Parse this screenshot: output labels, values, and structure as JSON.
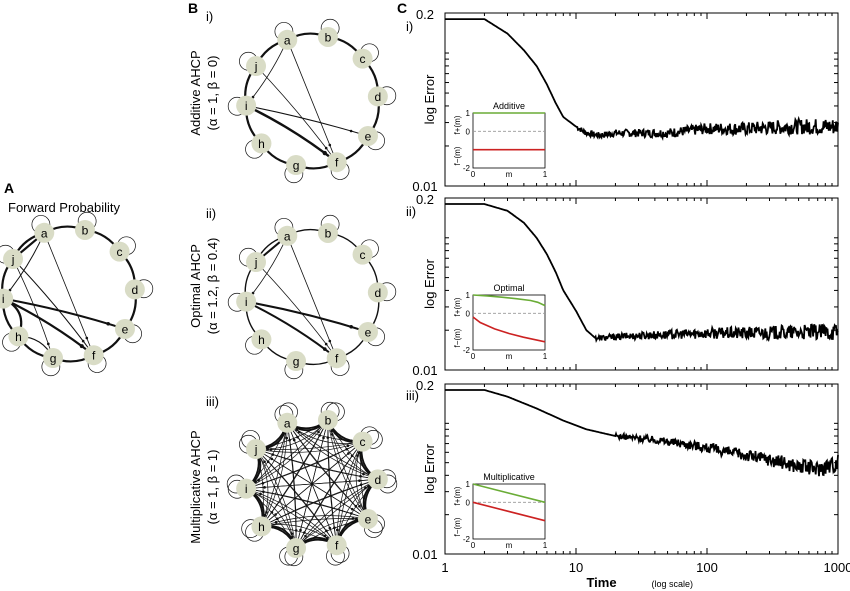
{
  "panels": {
    "a": "A",
    "b": "B",
    "c": "C"
  },
  "panel_a": {
    "title": "Forward Probability"
  },
  "nodes": [
    "a",
    "b",
    "c",
    "d",
    "e",
    "f",
    "g",
    "h",
    "i",
    "j"
  ],
  "panel_b": [
    {
      "roman": "i)",
      "line1": "Additive AHCP",
      "line2": "(α = 1, β = 0)"
    },
    {
      "roman": "ii)",
      "line1": "Optimal AHCP",
      "line2": "(α = 1.2, β = 0.4)"
    },
    {
      "roman": "iii)",
      "line1": "Multiplicative AHCP",
      "line2": "(α = 1, β = 1)"
    }
  ],
  "chart_data": [
    {
      "type": "line",
      "id": "i",
      "roman": "i)",
      "title": "",
      "xlabel": "Time",
      "xlabel_note": "(log scale)",
      "ylabel": "log Error",
      "xscale": "log",
      "yscale": "log",
      "xlim": [
        1,
        1000
      ],
      "ylim": [
        0.01,
        0.2
      ],
      "y_tick_labels": [
        "0.2",
        "0.01"
      ],
      "x": [
        1,
        2,
        3,
        4,
        5,
        6,
        7,
        8,
        10,
        12,
        15,
        20,
        30,
        50,
        100,
        200,
        500,
        1000
      ],
      "y": [
        0.18,
        0.18,
        0.14,
        0.105,
        0.08,
        0.058,
        0.042,
        0.033,
        0.028,
        0.025,
        0.024,
        0.025,
        0.025,
        0.025,
        0.027,
        0.027,
        0.028,
        0.028
      ],
      "noise_from_x": 10,
      "inset": {
        "title": "Additive",
        "xlabel": "m",
        "ylabel_top": "f+(m)",
        "ylabel_bottom": "f−(m)",
        "xlim": [
          0,
          1
        ],
        "ylim": [
          -2,
          1
        ],
        "x_tick_labels": [
          "0",
          "1"
        ],
        "y_tick_labels": [
          "1",
          "0",
          "-2"
        ],
        "series": [
          {
            "name": "f+(m)",
            "color": "#6aac36",
            "x": [
              0,
              1
            ],
            "y": [
              1,
              1
            ]
          },
          {
            "name": "f−(m)",
            "color": "#cc2222",
            "x": [
              0,
              1
            ],
            "y": [
              -1,
              -1
            ]
          }
        ]
      }
    },
    {
      "type": "line",
      "id": "ii",
      "roman": "ii)",
      "title": "",
      "xlabel": "Time",
      "xlabel_note": "(log scale)",
      "ylabel": "log Error",
      "xscale": "log",
      "yscale": "log",
      "xlim": [
        1,
        1000
      ],
      "ylim": [
        0.01,
        0.2
      ],
      "y_tick_labels": [
        "0.2",
        "0.01"
      ],
      "x": [
        1,
        2,
        3,
        4,
        5,
        6,
        7,
        8,
        10,
        12,
        14,
        16,
        20,
        30,
        50,
        100,
        200,
        500,
        1000
      ],
      "y": [
        0.18,
        0.18,
        0.16,
        0.13,
        0.1,
        0.075,
        0.055,
        0.04,
        0.028,
        0.02,
        0.0175,
        0.0175,
        0.0178,
        0.0182,
        0.0185,
        0.019,
        0.019,
        0.0192,
        0.0195
      ],
      "noise_from_x": 14,
      "inset": {
        "title": "Optimal",
        "xlabel": "m",
        "ylabel_top": "f+(m)",
        "ylabel_bottom": "f−(m)",
        "xlim": [
          0,
          1
        ],
        "ylim": [
          -2,
          1
        ],
        "x_tick_labels": [
          "0",
          "1"
        ],
        "y_tick_labels": [
          "1",
          "0",
          "-2"
        ],
        "series": [
          {
            "name": "f+(m)",
            "color": "#6aac36",
            "x": [
              0,
              0.2,
              0.4,
              0.6,
              0.8,
              0.9,
              1
            ],
            "y": [
              1,
              0.95,
              0.88,
              0.8,
              0.7,
              0.6,
              0.42
            ]
          },
          {
            "name": "f−(m)",
            "color": "#cc2222",
            "x": [
              0,
              0.1,
              0.3,
              0.5,
              0.7,
              1
            ],
            "y": [
              -0.2,
              -0.5,
              -0.85,
              -1.1,
              -1.3,
              -1.55
            ]
          }
        ]
      }
    },
    {
      "type": "line",
      "id": "iii",
      "roman": "iii)",
      "title": "",
      "xlabel": "Time",
      "xlabel_note": "(log scale)",
      "ylabel": "log Error",
      "xscale": "log",
      "yscale": "log",
      "xlim": [
        1,
        1000
      ],
      "ylim": [
        0.01,
        0.2
      ],
      "y_tick_labels": [
        "0.2",
        "0.01"
      ],
      "x": [
        1,
        2,
        3,
        5,
        8,
        12,
        20,
        40,
        80,
        150,
        300,
        500,
        700,
        1000
      ],
      "y": [
        0.18,
        0.18,
        0.16,
        0.13,
        0.105,
        0.09,
        0.08,
        0.075,
        0.068,
        0.06,
        0.053,
        0.047,
        0.045,
        0.05
      ],
      "noise_from_x": 20,
      "inset": {
        "title": "Multiplicative",
        "xlabel": "m",
        "ylabel_top": "f+(m)",
        "ylabel_bottom": "f−(m)",
        "xlim": [
          0,
          1
        ],
        "ylim": [
          -2,
          1
        ],
        "x_tick_labels": [
          "0",
          "1"
        ],
        "y_tick_labels": [
          "1",
          "0",
          "-2"
        ],
        "series": [
          {
            "name": "f+(m)",
            "color": "#6aac36",
            "x": [
              0,
              1
            ],
            "y": [
              1,
              0
            ]
          },
          {
            "name": "f−(m)",
            "color": "#cc2222",
            "x": [
              0,
              1
            ],
            "y": [
              0,
              -1
            ]
          }
        ]
      }
    }
  ],
  "x_axis": {
    "tick_labels": [
      "1",
      "10",
      "100",
      "1000"
    ],
    "label": "Time",
    "label_note": "(log scale)"
  }
}
